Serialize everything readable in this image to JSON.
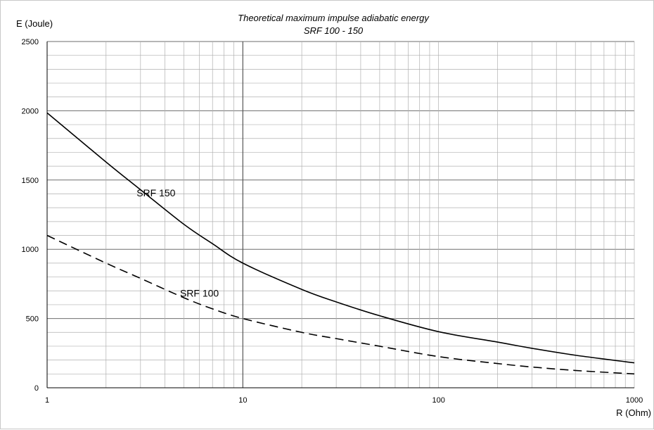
{
  "chart_data": {
    "type": "line",
    "title": "Theoretical maximum impulse adiabatic energy",
    "subtitle": "SRF 100 - 150",
    "xlabel": "R (Ohm)",
    "ylabel": "E (Joule)",
    "x_scale": "log",
    "xlim": [
      1,
      1000
    ],
    "ylim": [
      0,
      2500
    ],
    "x_ticks": [
      "1",
      "10",
      "100",
      "1000"
    ],
    "y_ticks": [
      "0",
      "500",
      "1000",
      "1500",
      "2000",
      "2500"
    ],
    "y_tick_values": [
      0,
      500,
      1000,
      1500,
      2000,
      2500
    ],
    "x_tick_values": [
      1,
      10,
      100,
      1000
    ],
    "grid": true,
    "minor_y_step": 100,
    "colors": {
      "grid": "#b0b0b0",
      "major_grid": "#808080",
      "line": "#000000"
    },
    "series": [
      {
        "name": "SRF 150",
        "style": "solid",
        "x": [
          1,
          2,
          3,
          5,
          7,
          10,
          20,
          30,
          50,
          100,
          200,
          300,
          500,
          1000
        ],
        "y": [
          1985,
          1630,
          1430,
          1180,
          1040,
          900,
          710,
          620,
          520,
          405,
          330,
          285,
          235,
          180
        ]
      },
      {
        "name": "SRF 100",
        "style": "dashed",
        "x": [
          1,
          2,
          3,
          5,
          7,
          10,
          20,
          30,
          50,
          100,
          200,
          300,
          500,
          1000
        ],
        "y": [
          1100,
          900,
          790,
          650,
          570,
          500,
          400,
          355,
          300,
          225,
          175,
          150,
          125,
          100
        ]
      }
    ]
  }
}
